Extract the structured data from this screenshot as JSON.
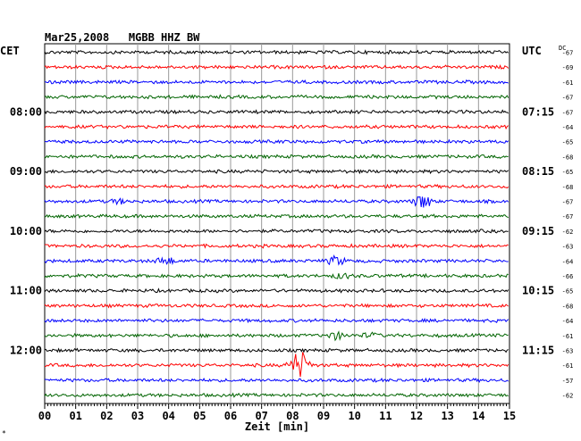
{
  "header": {
    "title": "Mar25,2008   MGBB HHZ BW",
    "left_label": "CET",
    "right_label": "UTC",
    "dc_label": "DC"
  },
  "chart_data": {
    "type": "line",
    "title": "Mar25,2008   MGBB HHZ BW",
    "xlabel": "Zeit [min]",
    "xlim": [
      0,
      15
    ],
    "x_ticks": [
      "00",
      "01",
      "02",
      "03",
      "04",
      "05",
      "06",
      "07",
      "08",
      "09",
      "10",
      "11",
      "12",
      "13",
      "14",
      "15"
    ],
    "left_time_labels": [
      "08:00",
      "09:00",
      "10:00",
      "11:00",
      "12:00"
    ],
    "right_time_labels": [
      "07:15",
      "08:15",
      "09:15",
      "10:15",
      "11:15"
    ],
    "trace_colors": [
      "#000000",
      "#ff0000",
      "#0000ff",
      "#006400"
    ],
    "dc_offsets": [
      -67,
      -69,
      -61,
      -67,
      -67,
      -64,
      -65,
      -68,
      -65,
      -68,
      -67,
      -67,
      -62,
      -63,
      -64,
      -66,
      -65,
      -68,
      -64,
      -61,
      -63,
      -61,
      -57,
      -62
    ],
    "events": [
      {
        "trace": 10,
        "minute": 2.4,
        "amp": 0.25
      },
      {
        "trace": 10,
        "minute": 12.2,
        "amp": 0.9
      },
      {
        "trace": 14,
        "minute": 3.9,
        "amp": 0.5
      },
      {
        "trace": 14,
        "minute": 9.4,
        "amp": 0.55
      },
      {
        "trace": 15,
        "minute": 9.6,
        "amp": 0.3
      },
      {
        "trace": 19,
        "minute": 9.4,
        "amp": 0.45
      },
      {
        "trace": 19,
        "minute": 10.5,
        "amp": 0.25
      },
      {
        "trace": 21,
        "minute": 8.1,
        "amp": 0.7
      },
      {
        "trace": 21,
        "minute": 8.3,
        "amp": 1.3
      }
    ],
    "footer_mark": "*"
  }
}
